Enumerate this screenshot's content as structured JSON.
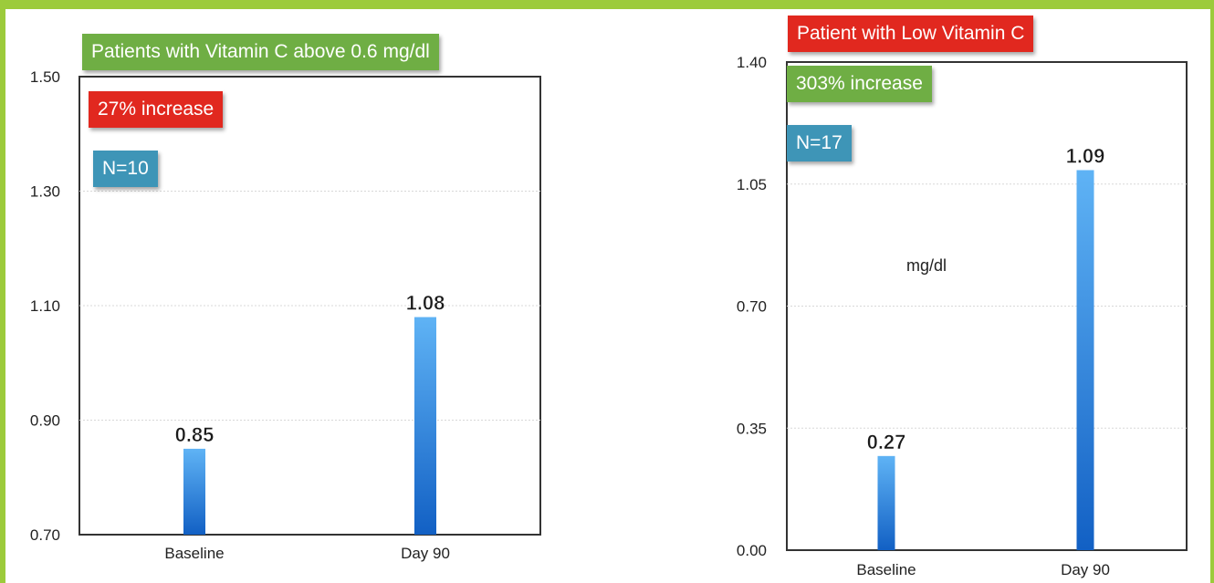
{
  "colors": {
    "frame": "#9ccb3b",
    "bar_top": "#5fb3f5",
    "bar_bottom": "#1260c4",
    "green_badge": "#6fae44",
    "red_badge": "#e1281f",
    "blue_badge": "#3e95b7"
  },
  "chart_data": [
    {
      "type": "bar",
      "title": "Patients with Vitamin C above 0.6 mg/dl",
      "annotations": [
        "27% increase",
        "N=10"
      ],
      "categories": [
        "Baseline",
        "Day 90"
      ],
      "values": [
        0.85,
        1.08
      ],
      "data_labels": [
        "0.85",
        "1.08"
      ],
      "ylim": [
        0.7,
        1.5
      ],
      "yticks": [
        "0.70",
        "0.90",
        "1.10",
        "1.30",
        "1.50"
      ],
      "ytick_values": [
        0.7,
        0.9,
        1.1,
        1.3,
        1.5
      ],
      "grid": true,
      "xlabel": "",
      "ylabel": ""
    },
    {
      "type": "bar",
      "title": "Patient with Low Vitamin C",
      "annotations": [
        "303% increase",
        "N=17"
      ],
      "unit_label": "mg/dl",
      "categories": [
        "Baseline",
        "Day 90"
      ],
      "values": [
        0.27,
        1.09
      ],
      "data_labels": [
        "0.27",
        "1.09"
      ],
      "ylim": [
        0.0,
        1.4
      ],
      "yticks": [
        "0.00",
        "0.35",
        "0.70",
        "1.05",
        "1.40"
      ],
      "ytick_values": [
        0.0,
        0.35,
        0.7,
        1.05,
        1.4
      ],
      "grid": true,
      "xlabel": "",
      "ylabel": ""
    }
  ]
}
